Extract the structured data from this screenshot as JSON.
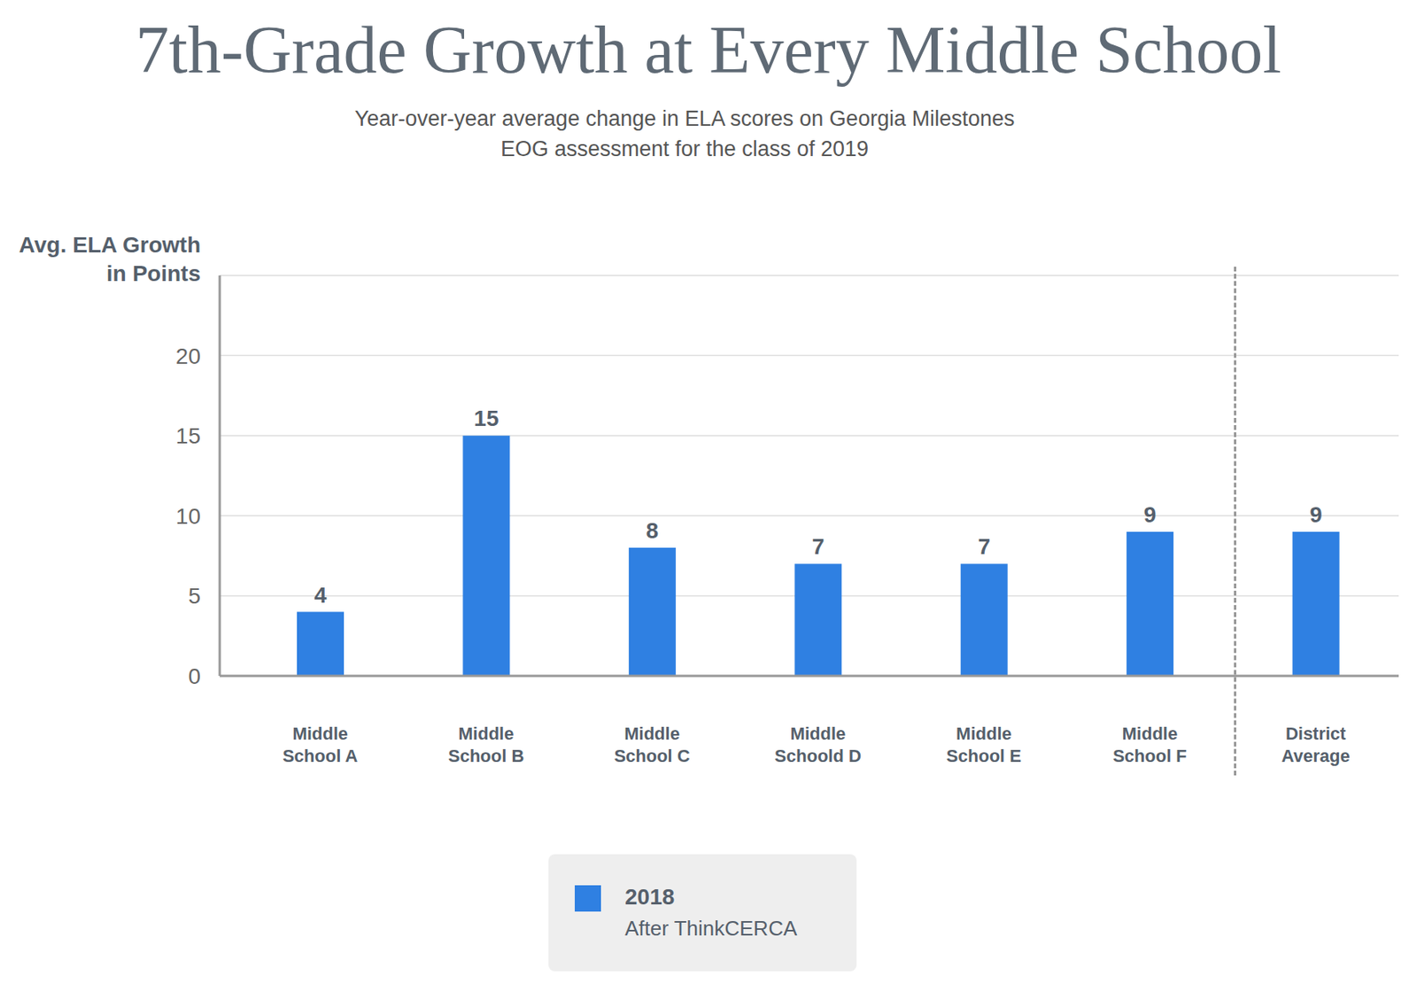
{
  "chart_data": {
    "type": "bar",
    "title": "7th-Grade Growth at Every Middle School",
    "subtitle": "Year-over-year average change in ELA scores on Georgia Milestones EOG assessment for the class of 2019",
    "y_label": "Avg. ELA Growth in Points",
    "categories": [
      "Middle School A",
      "Middle School B",
      "Middle School C",
      "Middle Schoold D",
      "Middle School E",
      "Middle School F",
      "District Average"
    ],
    "series": [
      {
        "name": "2018",
        "color": "#2f80e2",
        "values": [
          4,
          15,
          8,
          7,
          7,
          9,
          9
        ]
      }
    ],
    "annotations": [
      "After ThinkCERCA"
    ],
    "ylim": [
      0,
      25
    ],
    "yticks": [
      0,
      5,
      10,
      15,
      20
    ],
    "grid": true,
    "data_labels": true,
    "legend": "bottom"
  }
}
